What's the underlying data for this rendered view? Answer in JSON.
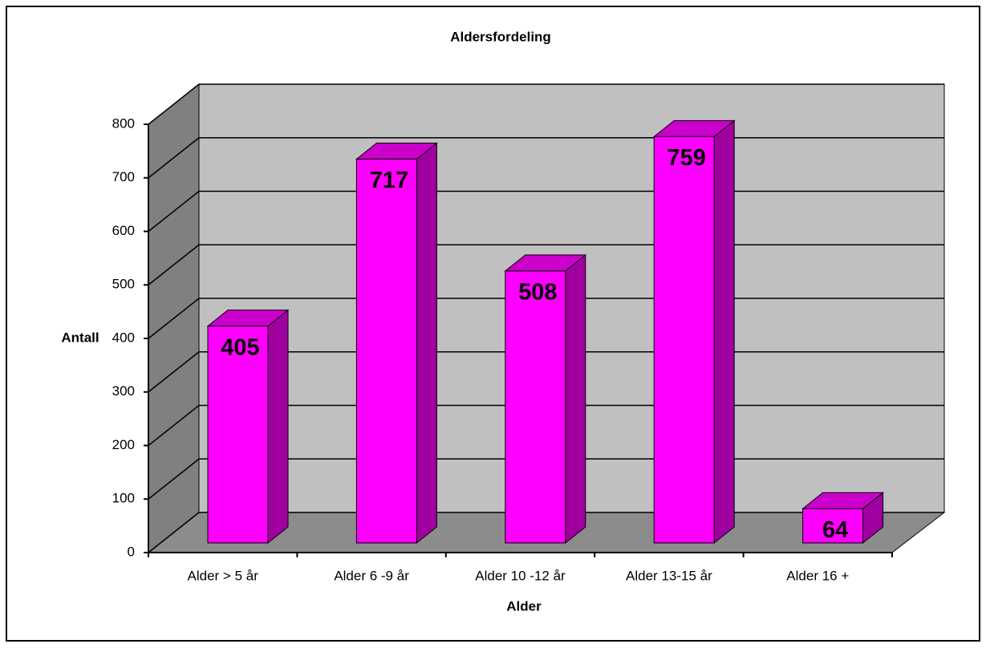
{
  "chart_data": {
    "type": "bar",
    "title": "Aldersfordeling",
    "x_label": "Alder",
    "y_label": "Antall",
    "categories": [
      "Alder > 5 år",
      "Alder 6 -9 år",
      "Alder 10 -12 år",
      "Alder 13-15 år",
      "Alder 16 +"
    ],
    "values": [
      405,
      717,
      508,
      759,
      64
    ],
    "color": "#ff00ff",
    "ylim": [
      0,
      800
    ],
    "yticks": [
      0,
      100,
      200,
      300,
      400,
      500,
      600,
      700,
      800
    ],
    "grid": true
  }
}
